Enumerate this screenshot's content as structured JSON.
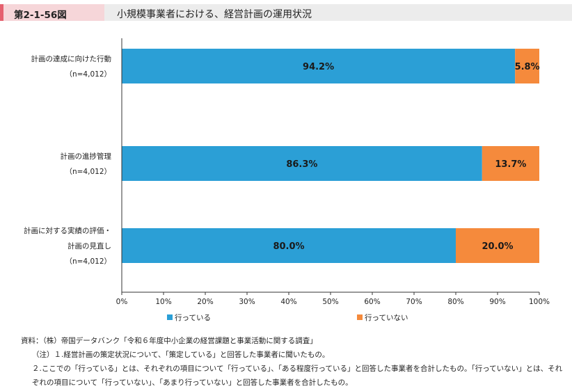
{
  "header": {
    "figure_number": "第2-1-56図",
    "title": "小規模事業者における、経営計画の運用状況"
  },
  "chart_data": {
    "type": "bar",
    "orientation": "horizontal",
    "stacked": true,
    "categories": [
      {
        "lines": [
          "計画の達成に向けた行動",
          "（n=4,012）"
        ]
      },
      {
        "lines": [
          "計画の進捗管理",
          "（n=4,012）"
        ]
      },
      {
        "lines": [
          "計画に対する実績の評価・",
          "計画の見直し",
          "（n=4,012）"
        ]
      }
    ],
    "series": [
      {
        "name": "行っている",
        "color": "#2b9fd6",
        "values": [
          94.2,
          86.3,
          80.0
        ],
        "labels": [
          "94.2%",
          "86.3%",
          "80.0%"
        ]
      },
      {
        "name": "行っていない",
        "color": "#f58a3c",
        "values": [
          5.8,
          13.7,
          20.0
        ],
        "labels": [
          "5.8%",
          "13.7%",
          "20.0%"
        ]
      }
    ],
    "xlim": [
      0,
      100
    ],
    "xticks": [
      "0%",
      "10%",
      "20%",
      "30%",
      "40%",
      "50%",
      "60%",
      "70%",
      "80%",
      "90%",
      "100%"
    ],
    "legend_position": "bottom",
    "grid": false
  },
  "notes": {
    "source": "資料：（株）帝国データバンク「令和６年度中小企業の経営課題と事業活動に関する調査」",
    "note1": "（注）１.経営計画の策定状況について、「策定している」と回答した事業者に聞いたもの。",
    "note2": "２.ここでの「行っている」とは、それぞれの項目について「行っている」、「ある程度行っている」と回答した事業者を合計したもの。「行っていない」とは、それぞれの項目について「行っていない」、「あまり行っていない」と回答した事業者を合計したもの。"
  }
}
